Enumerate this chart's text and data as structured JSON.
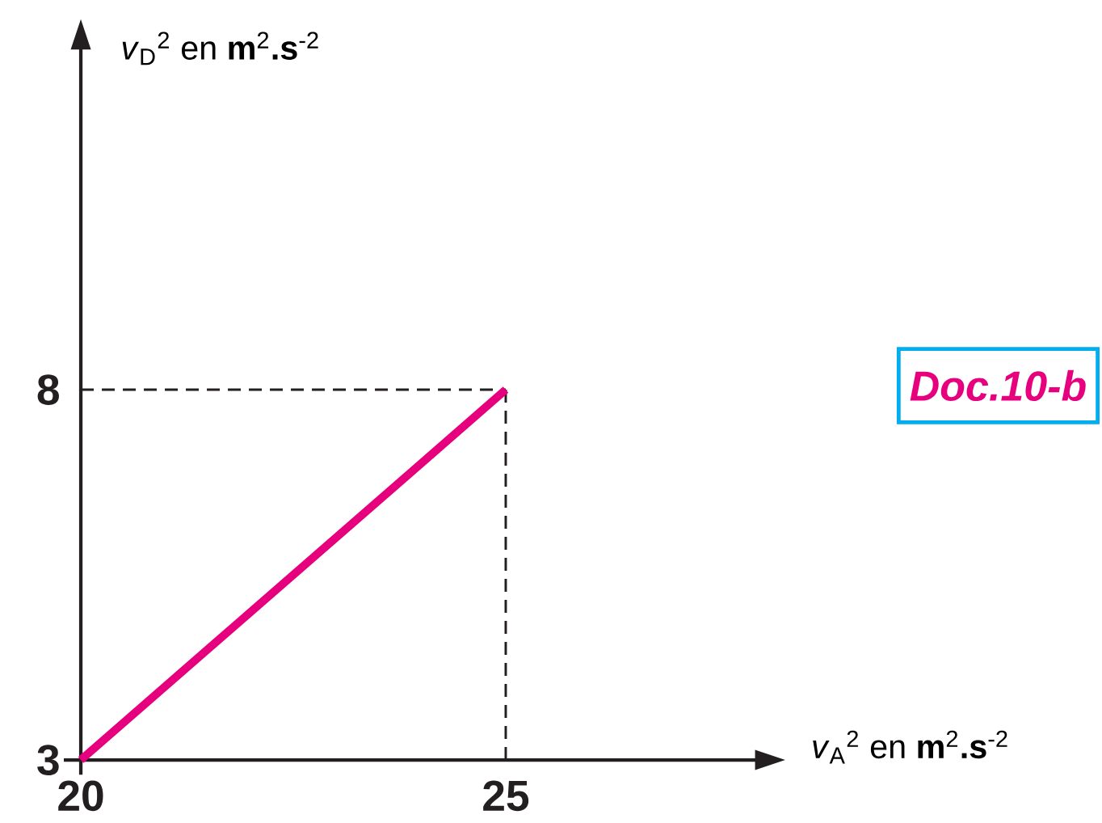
{
  "chart_data": {
    "type": "line",
    "xlabel": "*v*$_{A}$$^{2}$ en **m**$^{2}$**.s**$^{-2}$",
    "ylabel": "*v*$_{D}$$^{2}$ en **m**$^{2}$**.s**$^{-2}$",
    "x": [
      20,
      25
    ],
    "series": [
      {
        "color": "#e6007e",
        "values": [
          3,
          8
        ]
      }
    ],
    "xlim": [
      19.8,
      28.2
    ],
    "ylim": [
      2.8,
      12.9
    ],
    "xticks": [
      20,
      25
    ],
    "yticks": [
      3,
      8
    ],
    "ref_lines": [
      {
        "axis": "x",
        "value": 25,
        "color": "#231f20",
        "line_style": "dashed"
      },
      {
        "axis": "y",
        "value": 8,
        "color": "#231f20",
        "line_style": "dashed"
      }
    ],
    "annotations": [
      "Doc.10-b"
    ]
  }
}
